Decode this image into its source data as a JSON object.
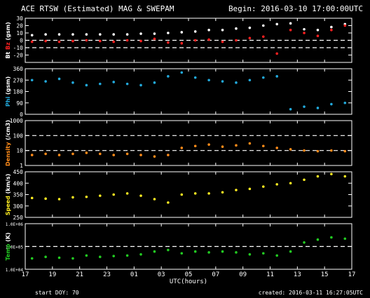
{
  "header": {
    "title": "ACE RTSW (Estimated) MAG & SWEPAM",
    "begin": "Begin: 2016-03-10 17:00:00UTC"
  },
  "footer": {
    "start_doy": "start DOY:  70",
    "created": "created: 2016-03-11 16:27:05UTC"
  },
  "colors": {
    "background": "#000000",
    "frame": "#ffffff",
    "bt": "#ffffff",
    "bz": "#ff2020",
    "phi": "#22aadd",
    "density": "#ff8c1a",
    "speed": "#ffee22",
    "temp": "#22cc22"
  },
  "chart_data": [
    {
      "type": "scatter",
      "ylabel_parts": [
        {
          "text": "Bt",
          "color": "#ffffff"
        },
        {
          "text": " Bz",
          "color": "#ff2020"
        },
        {
          "text": " (gsm)",
          "color": "#ffffff"
        }
      ],
      "ylim": [
        -30,
        30
      ],
      "yticks": [
        -20,
        -10,
        0,
        10,
        20,
        30
      ],
      "ytick_labels": [
        "-20",
        "-10",
        "0",
        "10",
        "20",
        "30"
      ],
      "reference_lines": [
        0,
        -10
      ],
      "series": [
        {
          "color": "#ffffff",
          "x": [
            0,
            1,
            2,
            3,
            4,
            5,
            6,
            7,
            8,
            9,
            10,
            11,
            12,
            13,
            14,
            15,
            16,
            17,
            18,
            19,
            20,
            21,
            22,
            23
          ],
          "y": [
            7,
            8,
            8,
            8,
            8,
            8,
            8,
            8,
            9,
            9,
            10,
            11,
            12,
            14,
            14,
            16,
            17,
            20,
            22,
            23,
            15,
            14,
            18,
            22
          ]
        },
        {
          "color": "#ff2020",
          "x": [
            0,
            1,
            2,
            3,
            4,
            5,
            6,
            7,
            8,
            9,
            10,
            11,
            12,
            13,
            14,
            15,
            16,
            17,
            18,
            19,
            20,
            21,
            22,
            23
          ],
          "y": [
            -2,
            -1,
            -2,
            -1,
            0,
            -1,
            -2,
            0,
            -1,
            2,
            -3,
            -4,
            0,
            1,
            -2,
            0,
            3,
            5,
            -18,
            14,
            10,
            6,
            14,
            20
          ]
        }
      ]
    },
    {
      "type": "scatter",
      "ylabel_parts": [
        {
          "text": "Phi",
          "color": "#22aadd"
        },
        {
          "text": " (gsm)",
          "color": "#ffffff"
        }
      ],
      "ylim": [
        0,
        360
      ],
      "yticks": [
        0,
        90,
        180,
        270,
        360
      ],
      "ytick_labels": [
        "0",
        "90",
        "180",
        "270",
        "360"
      ],
      "series": [
        {
          "color": "#22aadd",
          "x": [
            0,
            1,
            2,
            3,
            4,
            5,
            6,
            7,
            8,
            9,
            10,
            11,
            12,
            13,
            14,
            15,
            16,
            17,
            18,
            19,
            20,
            21,
            22,
            23
          ],
          "y": [
            270,
            260,
            280,
            250,
            230,
            240,
            255,
            240,
            230,
            250,
            300,
            330,
            290,
            270,
            260,
            250,
            270,
            290,
            300,
            40,
            60,
            50,
            80,
            90
          ]
        }
      ]
    },
    {
      "type": "scatter",
      "log_scale": true,
      "ylabel_parts": [
        {
          "text": "Density",
          "color": "#ff8c1a"
        },
        {
          "text": " (/cm3)",
          "color": "#ffffff"
        }
      ],
      "ylim": [
        1,
        1000
      ],
      "yticks": [
        1,
        10,
        100,
        1000
      ],
      "ytick_labels": [
        "1",
        "10",
        "100",
        "1000"
      ],
      "reference_lines": [
        100,
        10
      ],
      "series": [
        {
          "color": "#ff8c1a",
          "x": [
            0,
            1,
            2,
            3,
            4,
            5,
            6,
            7,
            8,
            9,
            10,
            11,
            12,
            13,
            14,
            15,
            16,
            17,
            18,
            19,
            20,
            21,
            22,
            23
          ],
          "y": [
            5,
            6,
            5,
            6,
            7,
            6,
            5,
            6,
            5,
            4,
            5,
            15,
            20,
            25,
            18,
            22,
            30,
            20,
            15,
            12,
            10,
            9,
            10,
            9
          ]
        }
      ]
    },
    {
      "type": "scatter",
      "ylabel_parts": [
        {
          "text": "Speed",
          "color": "#ffee22"
        },
        {
          "text": " (km/s)",
          "color": "#ffffff"
        }
      ],
      "ylim": [
        250,
        450
      ],
      "yticks": [
        250,
        300,
        350,
        400,
        450
      ],
      "ytick_labels": [
        "250",
        "300",
        "350",
        "400",
        "450"
      ],
      "series": [
        {
          "color": "#ffee22",
          "x": [
            0,
            1,
            2,
            3,
            4,
            5,
            6,
            7,
            8,
            9,
            10,
            11,
            12,
            13,
            14,
            15,
            16,
            17,
            18,
            19,
            20,
            21,
            22,
            23
          ],
          "y": [
            335,
            332,
            330,
            338,
            340,
            345,
            350,
            355,
            345,
            330,
            315,
            350,
            355,
            355,
            360,
            370,
            375,
            385,
            395,
            400,
            415,
            430,
            440,
            430
          ]
        }
      ]
    },
    {
      "type": "scatter",
      "log_scale": true,
      "ylabel_parts": [
        {
          "text": "Temp",
          "color": "#22cc22"
        },
        {
          "text": " (K)",
          "color": "#ffffff"
        }
      ],
      "ylim": [
        10000,
        1000000
      ],
      "yticks": [
        10000,
        100000,
        1000000
      ],
      "ytick_labels": [
        "1.0E+04",
        "1.0E+05",
        "1.0E+06"
      ],
      "reference_lines": [
        100000
      ],
      "series": [
        {
          "color": "#22cc22",
          "x": [
            0,
            1,
            2,
            3,
            4,
            5,
            6,
            7,
            8,
            9,
            10,
            11,
            12,
            13,
            14,
            15,
            16,
            17,
            18,
            19,
            20,
            21,
            22,
            23
          ],
          "y": [
            30000,
            35000,
            32000,
            30000,
            40000,
            35000,
            38000,
            40000,
            45000,
            60000,
            70000,
            50000,
            60000,
            55000,
            60000,
            55000,
            45000,
            50000,
            40000,
            60000,
            150000,
            200000,
            250000,
            220000
          ]
        }
      ]
    }
  ],
  "x_axis": {
    "label": "UTC(hours)",
    "range": [
      0,
      24
    ],
    "tick_labels": [
      "17",
      "19",
      "21",
      "23",
      "01",
      "03",
      "05",
      "07",
      "09",
      "11",
      "13",
      "15",
      "17"
    ]
  }
}
